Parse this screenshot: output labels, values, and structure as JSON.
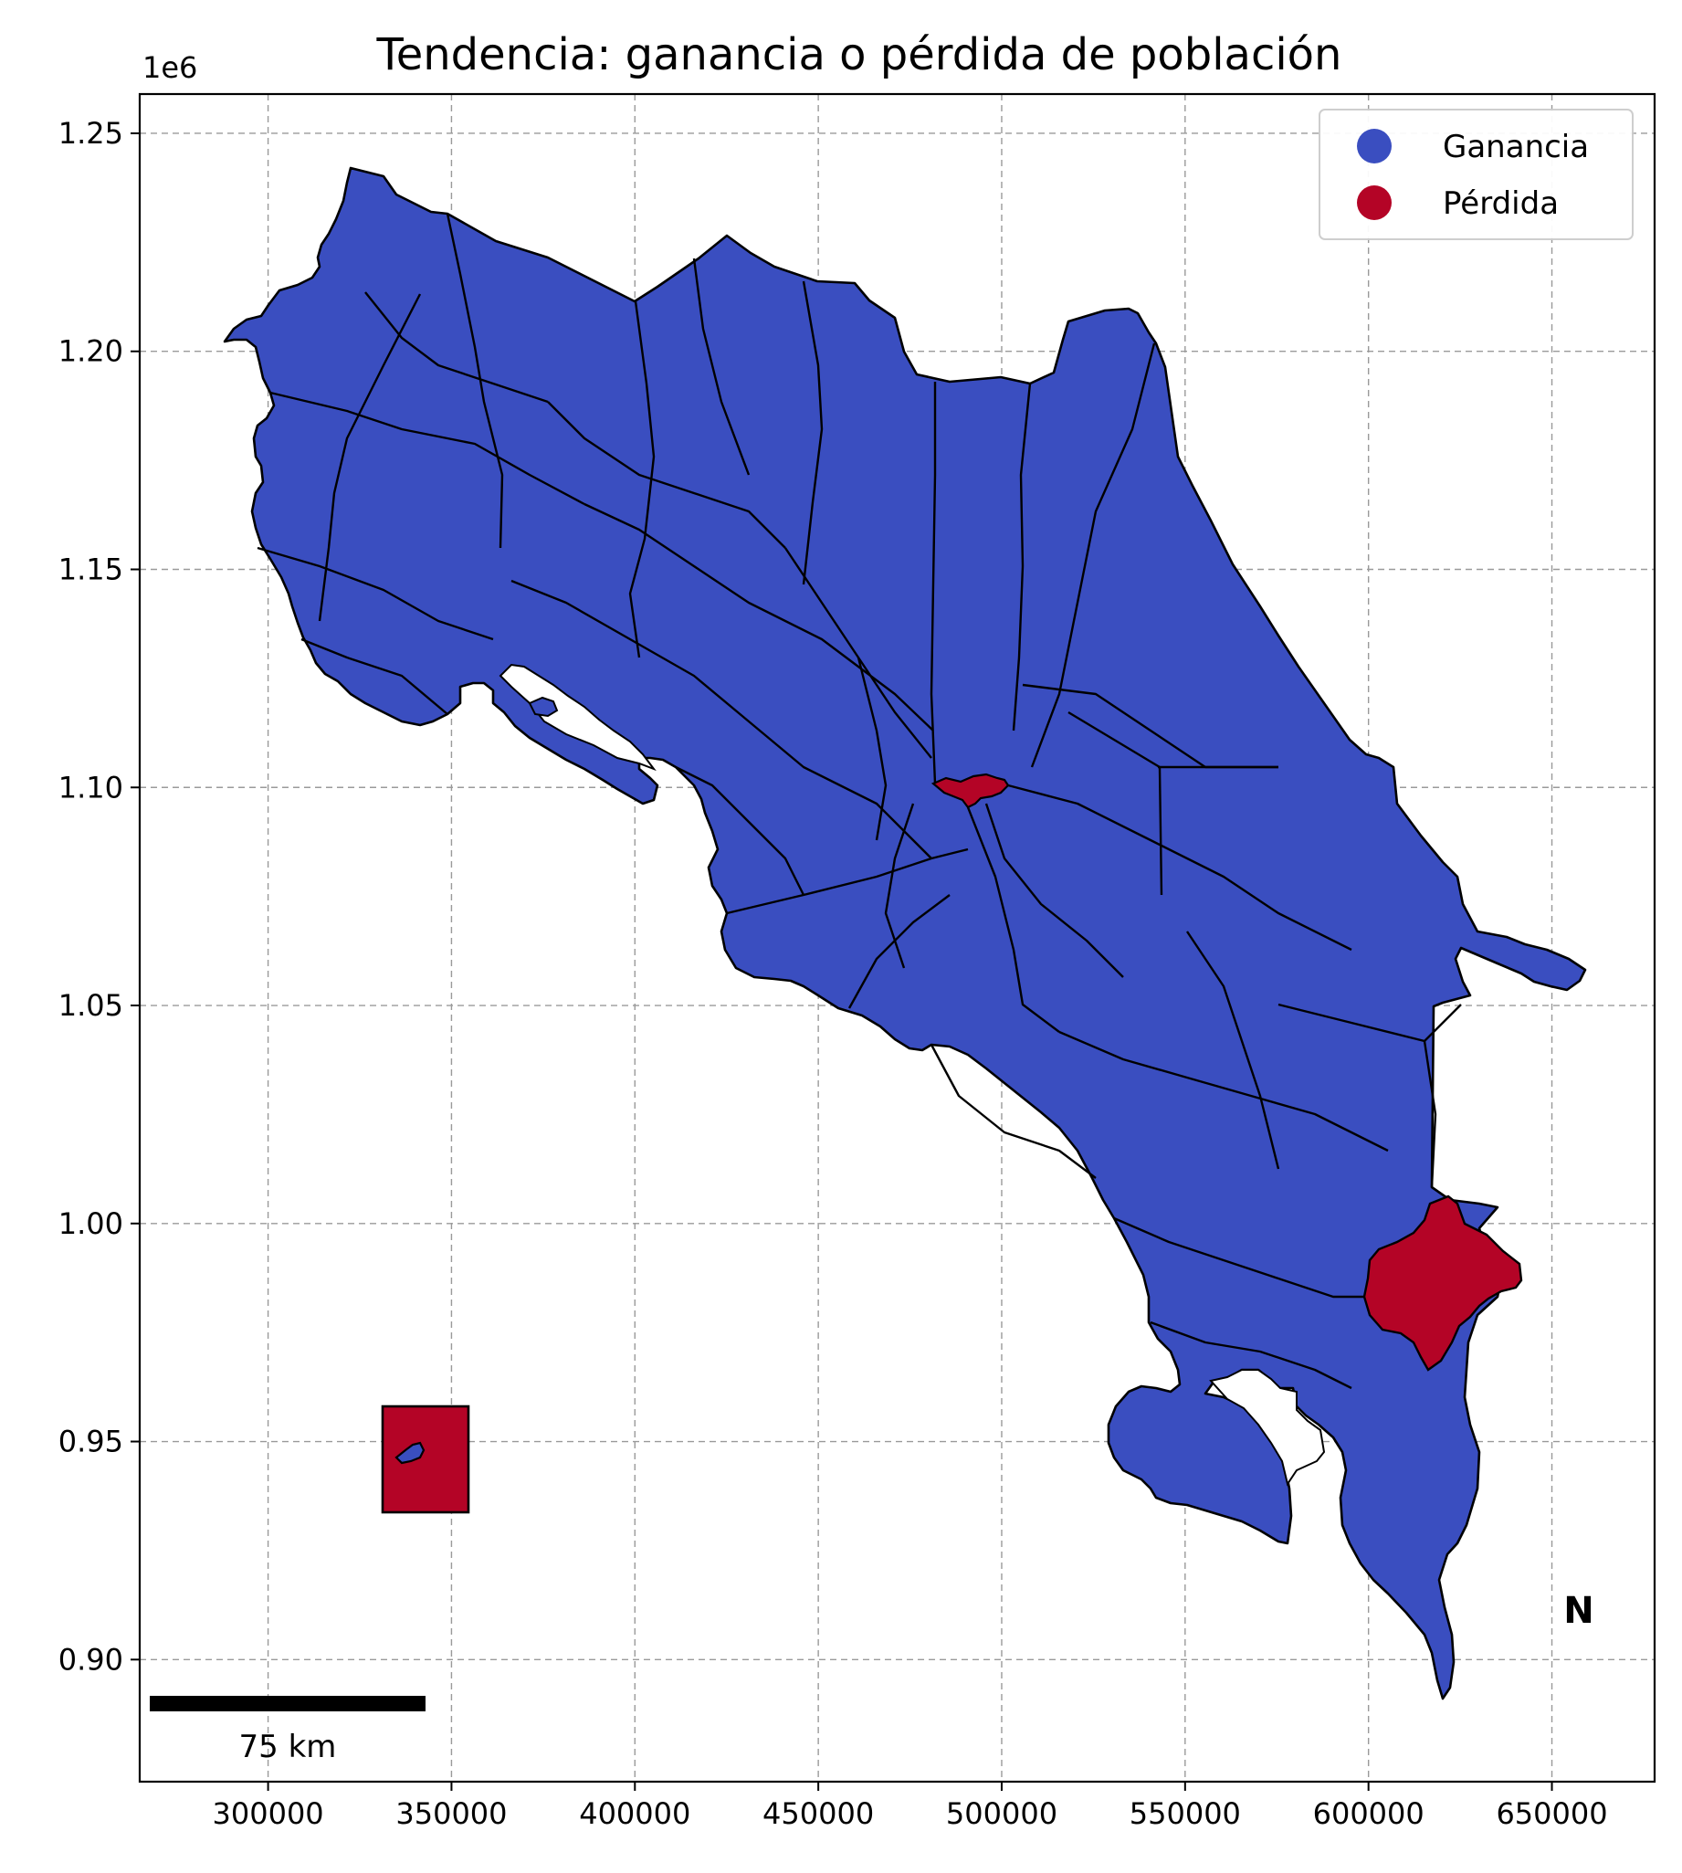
{
  "chart_data": {
    "type": "choropleth",
    "title": "Tendencia: ganancia o pérdida de población",
    "x_ticks": [
      "300000",
      "350000",
      "400000",
      "450000",
      "500000",
      "550000",
      "600000",
      "650000"
    ],
    "y_ticks": [
      "1.25",
      "1.20",
      "1.15",
      "1.10",
      "1.05",
      "1.00",
      "0.95",
      "0.90"
    ],
    "y_multiplier": "1e6",
    "xlim": [
      265000,
      678000
    ],
    "ylim": [
      872000,
      1259000
    ],
    "grid": true,
    "legend_position": "top-right",
    "legend": [
      {
        "label": "Ganancia",
        "color": "#3a4ec0"
      },
      {
        "label": "Pérdida",
        "color": "#b40426"
      }
    ],
    "categories": [
      {
        "name": "Ganancia",
        "regions": "mainland cantons (majority)"
      },
      {
        "name": "Pérdida",
        "regions": [
          "central San José canton",
          "south-eastern Talamanca canton",
          "island inset"
        ]
      }
    ]
  },
  "scale_bar": {
    "label": "75 km"
  },
  "north_arrow": {
    "label": "N"
  }
}
